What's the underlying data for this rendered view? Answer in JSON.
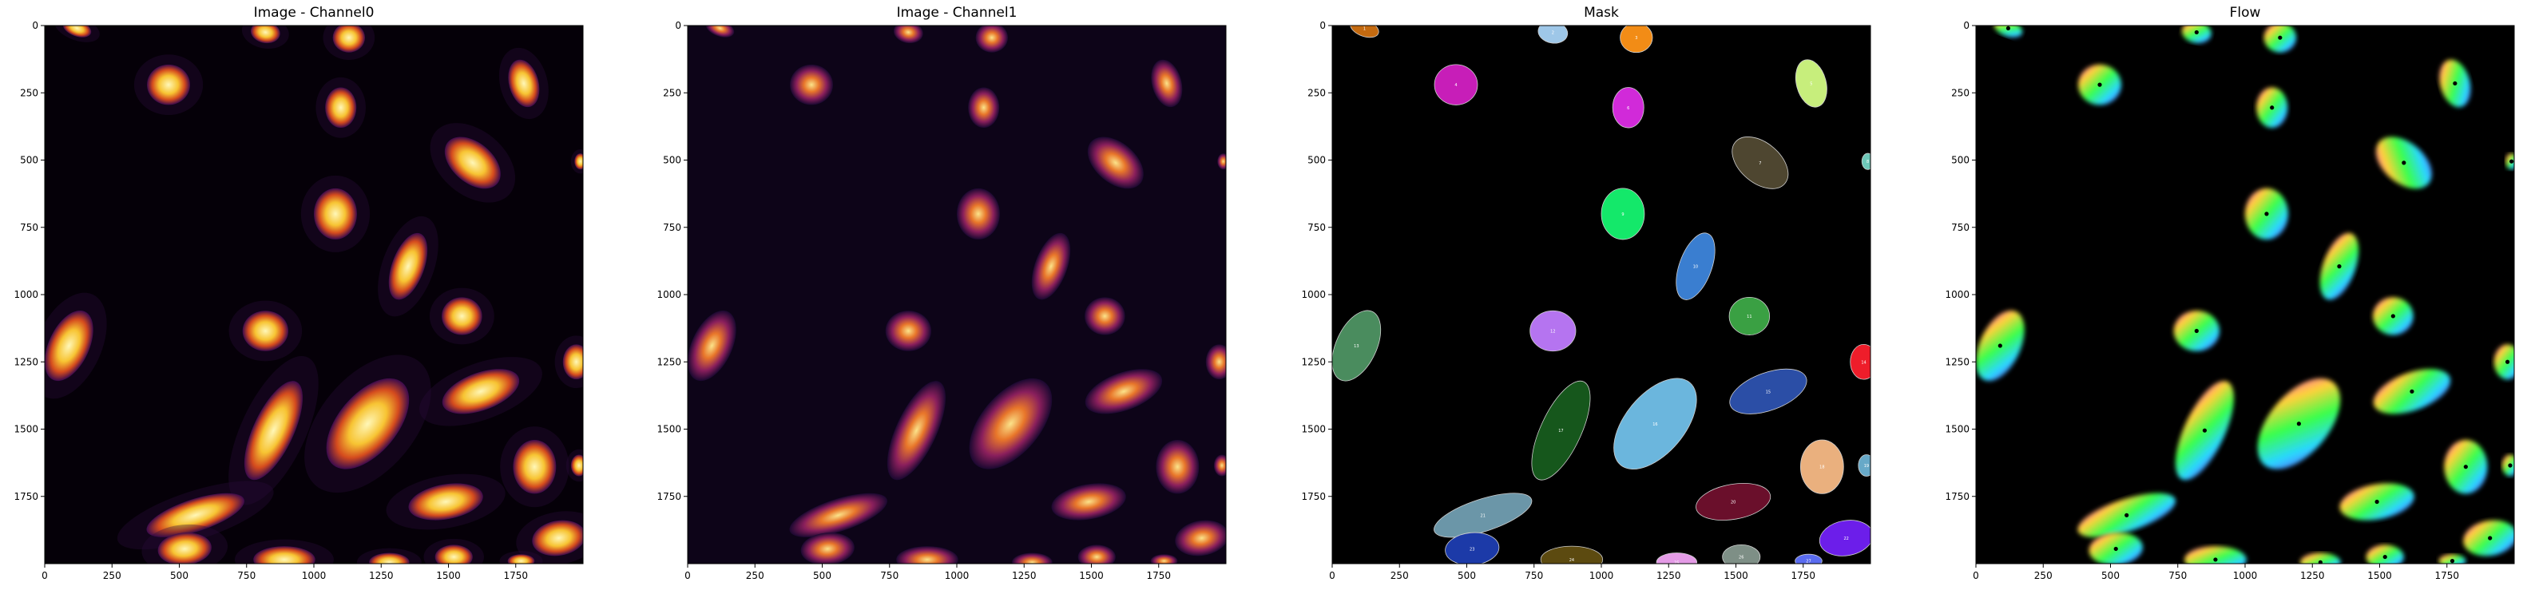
{
  "panels": [
    {
      "id": "ch0",
      "title": "Image - Channel0",
      "kind": "channel0"
    },
    {
      "id": "ch1",
      "title": "Image - Channel1",
      "kind": "channel1"
    },
    {
      "id": "mask",
      "title": "Mask",
      "kind": "mask"
    },
    {
      "id": "flow",
      "title": "Flow",
      "kind": "flow"
    }
  ],
  "axes": {
    "xticks": [
      0,
      250,
      500,
      750,
      1000,
      1250,
      1500,
      1750
    ],
    "yticks": [
      0,
      250,
      500,
      750,
      1000,
      1250,
      1500,
      1750
    ],
    "xlim": [
      0,
      2000
    ],
    "ylim": [
      2000,
      0
    ]
  },
  "cells": [
    {
      "id": 1,
      "x": 120,
      "y": 10,
      "rx": 55,
      "ry": 30,
      "rot": 20,
      "color": "#c46a10"
    },
    {
      "id": 2,
      "x": 820,
      "y": 25,
      "rx": 55,
      "ry": 40,
      "rot": 10,
      "color": "#9ec7e8"
    },
    {
      "id": 3,
      "x": 1130,
      "y": 45,
      "rx": 60,
      "ry": 55,
      "rot": 0,
      "color": "#f28c16"
    },
    {
      "id": 4,
      "x": 460,
      "y": 220,
      "rx": 80,
      "ry": 75,
      "rot": 0,
      "color": "#c71eb8"
    },
    {
      "id": 5,
      "x": 1780,
      "y": 215,
      "rx": 55,
      "ry": 90,
      "rot": -15,
      "color": "#c7ee7c"
    },
    {
      "id": 6,
      "x": 1100,
      "y": 305,
      "rx": 58,
      "ry": 75,
      "rot": 0,
      "color": "#d12ad9"
    },
    {
      "id": 7,
      "x": 1590,
      "y": 510,
      "rx": 75,
      "ry": 120,
      "rot": -50,
      "color": "#4e4630"
    },
    {
      "id": 8,
      "x": 1990,
      "y": 505,
      "rx": 22,
      "ry": 30,
      "rot": 0,
      "color": "#6ec7b8"
    },
    {
      "id": 9,
      "x": 1080,
      "y": 700,
      "rx": 80,
      "ry": 95,
      "rot": 0,
      "color": "#14e86a"
    },
    {
      "id": 10,
      "x": 1350,
      "y": 895,
      "rx": 60,
      "ry": 130,
      "rot": 20,
      "color": "#3a7ed0"
    },
    {
      "id": 11,
      "x": 1550,
      "y": 1080,
      "rx": 75,
      "ry": 70,
      "rot": 0,
      "color": "#3aa043"
    },
    {
      "id": 12,
      "x": 820,
      "y": 1135,
      "rx": 85,
      "ry": 75,
      "rot": 0,
      "color": "#b574f0"
    },
    {
      "id": 13,
      "x": 90,
      "y": 1190,
      "rx": 75,
      "ry": 140,
      "rot": 25,
      "color": "#4a8c5e"
    },
    {
      "id": 14,
      "x": 1975,
      "y": 1250,
      "rx": 50,
      "ry": 65,
      "rot": 0,
      "color": "#ee1d2a"
    },
    {
      "id": 15,
      "x": 1620,
      "y": 1360,
      "rx": 150,
      "ry": 70,
      "rot": -20,
      "color": "#2b4ea6"
    },
    {
      "id": 16,
      "x": 1200,
      "y": 1480,
      "rx": 110,
      "ry": 200,
      "rot": 40,
      "color": "#6bb6dd"
    },
    {
      "id": 17,
      "x": 850,
      "y": 1505,
      "rx": 75,
      "ry": 200,
      "rot": 25,
      "color": "#16571c"
    },
    {
      "id": 18,
      "x": 1820,
      "y": 1640,
      "rx": 80,
      "ry": 100,
      "rot": 0,
      "color": "#eab07e"
    },
    {
      "id": 19,
      "x": 1985,
      "y": 1635,
      "rx": 30,
      "ry": 40,
      "rot": 0,
      "color": "#67a9c8"
    },
    {
      "id": 20,
      "x": 1490,
      "y": 1770,
      "rx": 140,
      "ry": 65,
      "rot": -10,
      "color": "#6a0f2b"
    },
    {
      "id": 21,
      "x": 560,
      "y": 1820,
      "rx": 190,
      "ry": 60,
      "rot": -18,
      "color": "#6b96a8"
    },
    {
      "id": 22,
      "x": 1910,
      "y": 1905,
      "rx": 100,
      "ry": 65,
      "rot": -10,
      "color": "#6c1eea"
    },
    {
      "id": 23,
      "x": 520,
      "y": 1945,
      "rx": 100,
      "ry": 60,
      "rot": -5,
      "color": "#1c3aa8"
    },
    {
      "id": 24,
      "x": 890,
      "y": 1985,
      "rx": 115,
      "ry": 50,
      "rot": 0,
      "color": "#5c4a10"
    },
    {
      "id": 25,
      "x": 1280,
      "y": 1995,
      "rx": 75,
      "ry": 35,
      "rot": 0,
      "color": "#e49be6"
    },
    {
      "id": 26,
      "x": 1520,
      "y": 1975,
      "rx": 70,
      "ry": 45,
      "rot": 0,
      "color": "#7e8f86"
    },
    {
      "id": 27,
      "x": 1770,
      "y": 1990,
      "rx": 50,
      "ry": 25,
      "rot": 0,
      "color": "#5a6cf0"
    }
  ]
}
